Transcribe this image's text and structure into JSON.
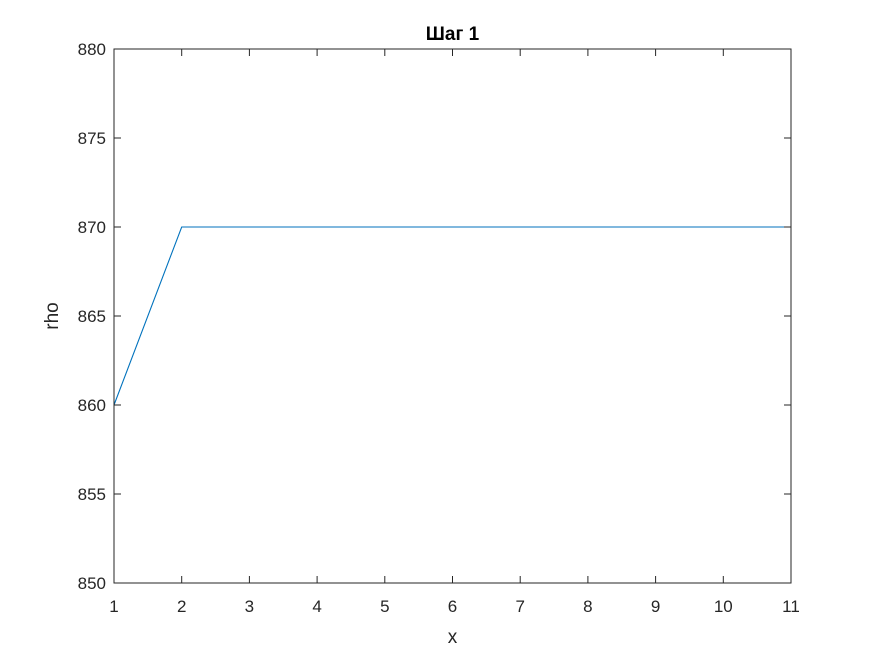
{
  "chart_data": {
    "type": "line",
    "title": "Шаг 1",
    "xlabel": "x",
    "ylabel": "rho",
    "xlim": [
      1,
      11
    ],
    "ylim": [
      850,
      880
    ],
    "xticks": [
      1,
      2,
      3,
      4,
      5,
      6,
      7,
      8,
      9,
      10,
      11
    ],
    "yticks": [
      850,
      855,
      860,
      865,
      870,
      875,
      880
    ],
    "grid": false,
    "series": [
      {
        "color": "#0072BD",
        "x": [
          1,
          2,
          3,
          4,
          5,
          6,
          7,
          8,
          9,
          10,
          11
        ],
        "y": [
          860,
          870,
          870,
          870,
          870,
          870,
          870,
          870,
          870,
          870,
          870
        ]
      }
    ]
  }
}
